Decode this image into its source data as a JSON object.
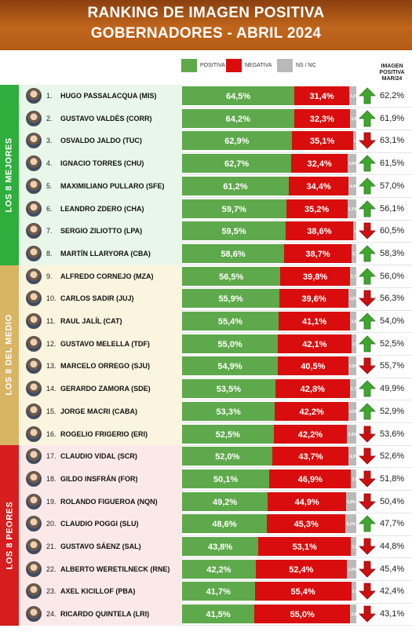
{
  "header": {
    "title_line1": "RANKING DE IMAGEN POSITIVA",
    "title_line2": "GOBERNADORES - ABRIL 2024"
  },
  "legend": {
    "positive": "POSITIVA",
    "negative": "NEGATIVA",
    "ns": "NS / NC"
  },
  "prev_header": [
    "IMAGEN",
    "POSITIVA",
    "MAR/24"
  ],
  "colors": {
    "positive": "#5ea94b",
    "negative": "#d90d0d",
    "ns": "#b9b9b9",
    "arrow_up": "#3fa52e",
    "arrow_down": "#cc1010",
    "group_top": "#2fae3e",
    "group_mid": "#d9b463",
    "group_low": "#d61e1e",
    "header": "#b35a16"
  },
  "groups": [
    {
      "label": "LOS 8 MEJORES",
      "key": "top"
    },
    {
      "label": "LOS 8 DEL MEDIO",
      "key": "mid"
    },
    {
      "label": "LOS 8 PEORES",
      "key": "low"
    }
  ],
  "chart_data": {
    "type": "bar",
    "stacked": true,
    "orientation": "horizontal",
    "title": "RANKING DE IMAGEN POSITIVA",
    "subtitle": "GOBERNADORES - ABRIL 2024",
    "series_names": [
      "POSITIVA",
      "NEGATIVA",
      "NS / NC"
    ],
    "rows": [
      {
        "rank": "1.",
        "name": "HUGO PASSALACQUA (MIS)",
        "pos": 64.5,
        "pos_label": "64,5%",
        "neg": 31.4,
        "neg_label": "31,4%",
        "ns": 4.1,
        "ns_label": "4,1%",
        "trend": "up",
        "prev": "62,2%"
      },
      {
        "rank": "2.",
        "name": "GUSTAVO VALDÉS (CORR)",
        "pos": 64.2,
        "pos_label": "64,2%",
        "neg": 32.3,
        "neg_label": "32,3%",
        "ns": 3.5,
        "ns_label": "3,5%",
        "trend": "up",
        "prev": "61,9%"
      },
      {
        "rank": "3.",
        "name": "OSVALDO JALDO (TUC)",
        "pos": 62.9,
        "pos_label": "62,9%",
        "neg": 35.1,
        "neg_label": "35,1%",
        "ns": 2.0,
        "ns_label": "2,0%",
        "trend": "down",
        "prev": "63,1%"
      },
      {
        "rank": "4.",
        "name": "IGNACIO TORRES (CHU)",
        "pos": 62.7,
        "pos_label": "62,7%",
        "neg": 32.4,
        "neg_label": "32,4%",
        "ns": 4.9,
        "ns_label": "4,9%",
        "trend": "up",
        "prev": "61,5%"
      },
      {
        "rank": "5.",
        "name": "MAXIMILIANO PULLARO (SFE)",
        "pos": 61.2,
        "pos_label": "61,2%",
        "neg": 34.4,
        "neg_label": "34,4%",
        "ns": 4.4,
        "ns_label": "4,4%",
        "trend": "up",
        "prev": "57,0%"
      },
      {
        "rank": "6.",
        "name": "LEANDRO ZDERO (CHA)",
        "pos": 59.7,
        "pos_label": "59,7%",
        "neg": 35.2,
        "neg_label": "35,2%",
        "ns": 5.1,
        "ns_label": "5,1%",
        "trend": "up",
        "prev": "56,1%"
      },
      {
        "rank": "7.",
        "name": "SERGIO ZILIOTTO (LPA)",
        "pos": 59.5,
        "pos_label": "59,5%",
        "neg": 38.6,
        "neg_label": "38,6%",
        "ns": 1.9,
        "ns_label": "1,9%",
        "trend": "down",
        "prev": "60,5%"
      },
      {
        "rank": "8.",
        "name": "MARTÍN LLARYORA (CBA)",
        "pos": 58.6,
        "pos_label": "58,6%",
        "neg": 38.7,
        "neg_label": "38,7%",
        "ns": 2.7,
        "ns_label": "2,7%",
        "trend": "up",
        "prev": "58,3%"
      },
      {
        "rank": "9.",
        "name": "ALFREDO CORNEJO (MZA)",
        "pos": 56.5,
        "pos_label": "56,5%",
        "neg": 39.8,
        "neg_label": "39,8%",
        "ns": 3.7,
        "ns_label": "3,7%",
        "trend": "up",
        "prev": "56,0%"
      },
      {
        "rank": "10.",
        "name": "CARLOS SADIR (JUJ)",
        "pos": 55.9,
        "pos_label": "55,9%",
        "neg": 39.6,
        "neg_label": "39,6%",
        "ns": 4.5,
        "ns_label": "4,5%",
        "trend": "down",
        "prev": "56,3%"
      },
      {
        "rank": "11.",
        "name": "RAUL JALÍL (CAT)",
        "pos": 55.4,
        "pos_label": "55,4%",
        "neg": 41.1,
        "neg_label": "41,1%",
        "ns": 3.5,
        "ns_label": "3,5%",
        "trend": "up",
        "prev": "54,0%"
      },
      {
        "rank": "12.",
        "name": "GUSTAVO MELELLA (TDF)",
        "pos": 55.0,
        "pos_label": "55,0%",
        "neg": 42.1,
        "neg_label": "42,1%",
        "ns": 2.9,
        "ns_label": "2,9%",
        "trend": "up",
        "prev": "52,5%"
      },
      {
        "rank": "13.",
        "name": "MARCELO ORREGO (SJU)",
        "pos": 54.9,
        "pos_label": "54,9%",
        "neg": 40.5,
        "neg_label": "40,5%",
        "ns": 4.6,
        "ns_label": "4,6%",
        "trend": "down",
        "prev": "55,7%"
      },
      {
        "rank": "14.",
        "name": "GERARDO ZAMORA (SDE)",
        "pos": 53.5,
        "pos_label": "53,5%",
        "neg": 42.8,
        "neg_label": "42,8%",
        "ns": 3.7,
        "ns_label": "3,7%",
        "trend": "up",
        "prev": "49,9%"
      },
      {
        "rank": "15.",
        "name": "JORGE MACRI (CABA)",
        "pos": 53.3,
        "pos_label": "53,3%",
        "neg": 42.2,
        "neg_label": "42,2%",
        "ns": 4.5,
        "ns_label": "4,5%",
        "trend": "up",
        "prev": "52,9%"
      },
      {
        "rank": "16.",
        "name": "ROGELIO FRIGERIO (ERI)",
        "pos": 52.5,
        "pos_label": "52,5%",
        "neg": 42.2,
        "neg_label": "42,2%",
        "ns": 5.3,
        "ns_label": "5,3%",
        "trend": "down",
        "prev": "53,6%"
      },
      {
        "rank": "17.",
        "name": "CLAUDIO VIDAL (SCR)",
        "pos": 52.0,
        "pos_label": "52,0%",
        "neg": 43.7,
        "neg_label": "43,7%",
        "ns": 4.3,
        "ns_label": "4,3%",
        "trend": "down",
        "prev": "52,6%"
      },
      {
        "rank": "18.",
        "name": "GILDO INSFRÁN (FOR)",
        "pos": 50.1,
        "pos_label": "50,1%",
        "neg": 46.9,
        "neg_label": "46,9%",
        "ns": 3.0,
        "ns_label": "3,0%",
        "trend": "down",
        "prev": "51,8%"
      },
      {
        "rank": "19.",
        "name": "ROLANDO FIGUEROA (NQN)",
        "pos": 49.2,
        "pos_label": "49,2%",
        "neg": 44.9,
        "neg_label": "44,9%",
        "ns": 5.9,
        "ns_label": "5,9%",
        "trend": "down",
        "prev": "50,4%"
      },
      {
        "rank": "20.",
        "name": "CLAUDIO POGGI (SLU)",
        "pos": 48.6,
        "pos_label": "48,6%",
        "neg": 45.3,
        "neg_label": "45,3%",
        "ns": 6.1,
        "ns_label": "6,1%",
        "trend": "up",
        "prev": "47,7%"
      },
      {
        "rank": "21.",
        "name": "GUSTAVO SÁENZ (SAL)",
        "pos": 43.8,
        "pos_label": "43,8%",
        "neg": 53.1,
        "neg_label": "53,1%",
        "ns": 3.1,
        "ns_label": "3,1%",
        "trend": "down",
        "prev": "44,8%"
      },
      {
        "rank": "22.",
        "name": "ALBERTO WERETILNECK (RNE)",
        "pos": 42.2,
        "pos_label": "42,2%",
        "neg": 52.4,
        "neg_label": "52,4%",
        "ns": 5.4,
        "ns_label": "5,4%",
        "trend": "down",
        "prev": "45,4%"
      },
      {
        "rank": "23.",
        "name": "AXEL KICILLOF (PBA)",
        "pos": 41.7,
        "pos_label": "41,7%",
        "neg": 55.4,
        "neg_label": "55,4%",
        "ns": 2.9,
        "ns_label": "2,9%",
        "trend": "down",
        "prev": "42,4%"
      },
      {
        "rank": "24.",
        "name": "RICARDO QUINTELA (LRI)",
        "pos": 41.5,
        "pos_label": "41,5%",
        "neg": 55.0,
        "neg_label": "55,0%",
        "ns": 3.5,
        "ns_label": "3,5%",
        "trend": "down",
        "prev": "43,1%"
      }
    ]
  }
}
